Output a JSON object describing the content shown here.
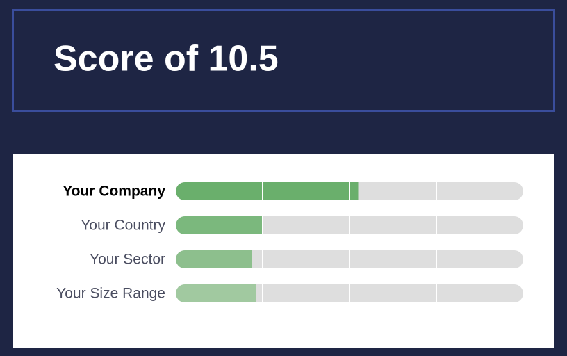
{
  "chart_data": {
    "type": "bar",
    "orientation": "horizontal",
    "title": "Score of 10.5",
    "categories": [
      "Your Company",
      "Your Country",
      "Your Sector",
      "Your Size Range"
    ],
    "values": [
      10.5,
      5.0,
      4.4,
      4.6
    ],
    "colors": [
      "#6aaf6c",
      "#7bb87d",
      "#8dbf8d",
      "#a1c9a0"
    ],
    "highlight": 0,
    "xlim": [
      0,
      20
    ],
    "xticks": [
      5,
      10,
      15
    ],
    "grid": true
  }
}
